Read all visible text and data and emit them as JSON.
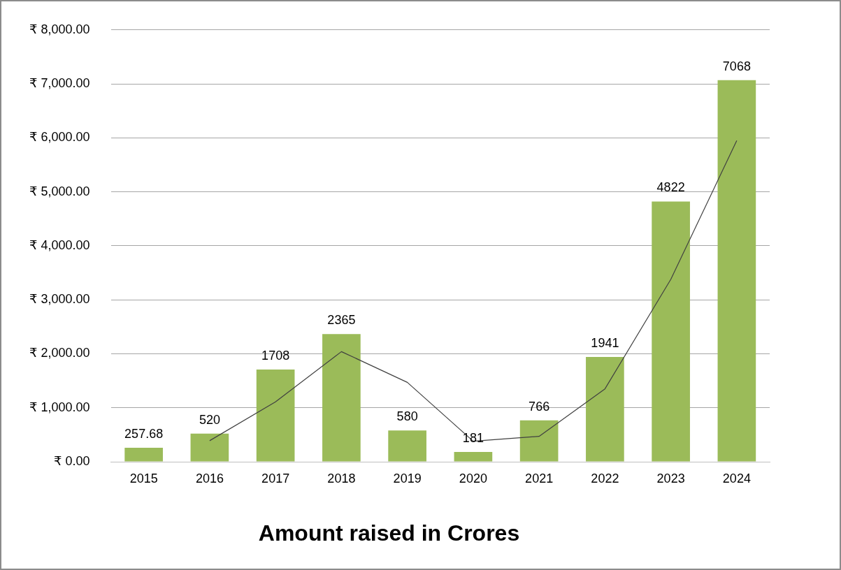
{
  "chart_data": {
    "type": "bar",
    "title": "Amount raised in Crores",
    "categories": [
      "2015",
      "2016",
      "2017",
      "2018",
      "2019",
      "2020",
      "2021",
      "2022",
      "2023",
      "2024"
    ],
    "series": [
      {
        "color": "#9bbb59",
        "values": [
          257.68,
          520,
          1708,
          2365,
          580,
          181,
          766,
          1941,
          4822,
          7068
        ],
        "value_labels": [
          "257.68",
          "520",
          "1708",
          "2365",
          "580",
          "181",
          "766",
          "1941",
          "4822",
          "7068"
        ]
      },
      {
        "type": "line",
        "color": "#404040",
        "values": [
          null,
          390,
          1110,
          2040,
          1470,
          380,
          470,
          1350,
          3380,
          5950
        ]
      }
    ],
    "ylim": [
      0,
      8000
    ],
    "yticks": [
      {
        "value": 0,
        "label": "₹ 0.00"
      },
      {
        "value": 1000,
        "label": "₹ 1,000.00"
      },
      {
        "value": 2000,
        "label": "₹ 2,000.00"
      },
      {
        "value": 3000,
        "label": "₹ 3,000.00"
      },
      {
        "value": 4000,
        "label": "₹ 4,000.00"
      },
      {
        "value": 5000,
        "label": "₹ 5,000.00"
      },
      {
        "value": 6000,
        "label": "₹ 6,000.00"
      },
      {
        "value": 7000,
        "label": "₹ 7,000.00"
      },
      {
        "value": 8000,
        "label": "₹ 8,000.00"
      }
    ],
    "grid": "y",
    "marker": "none",
    "legend": false
  }
}
